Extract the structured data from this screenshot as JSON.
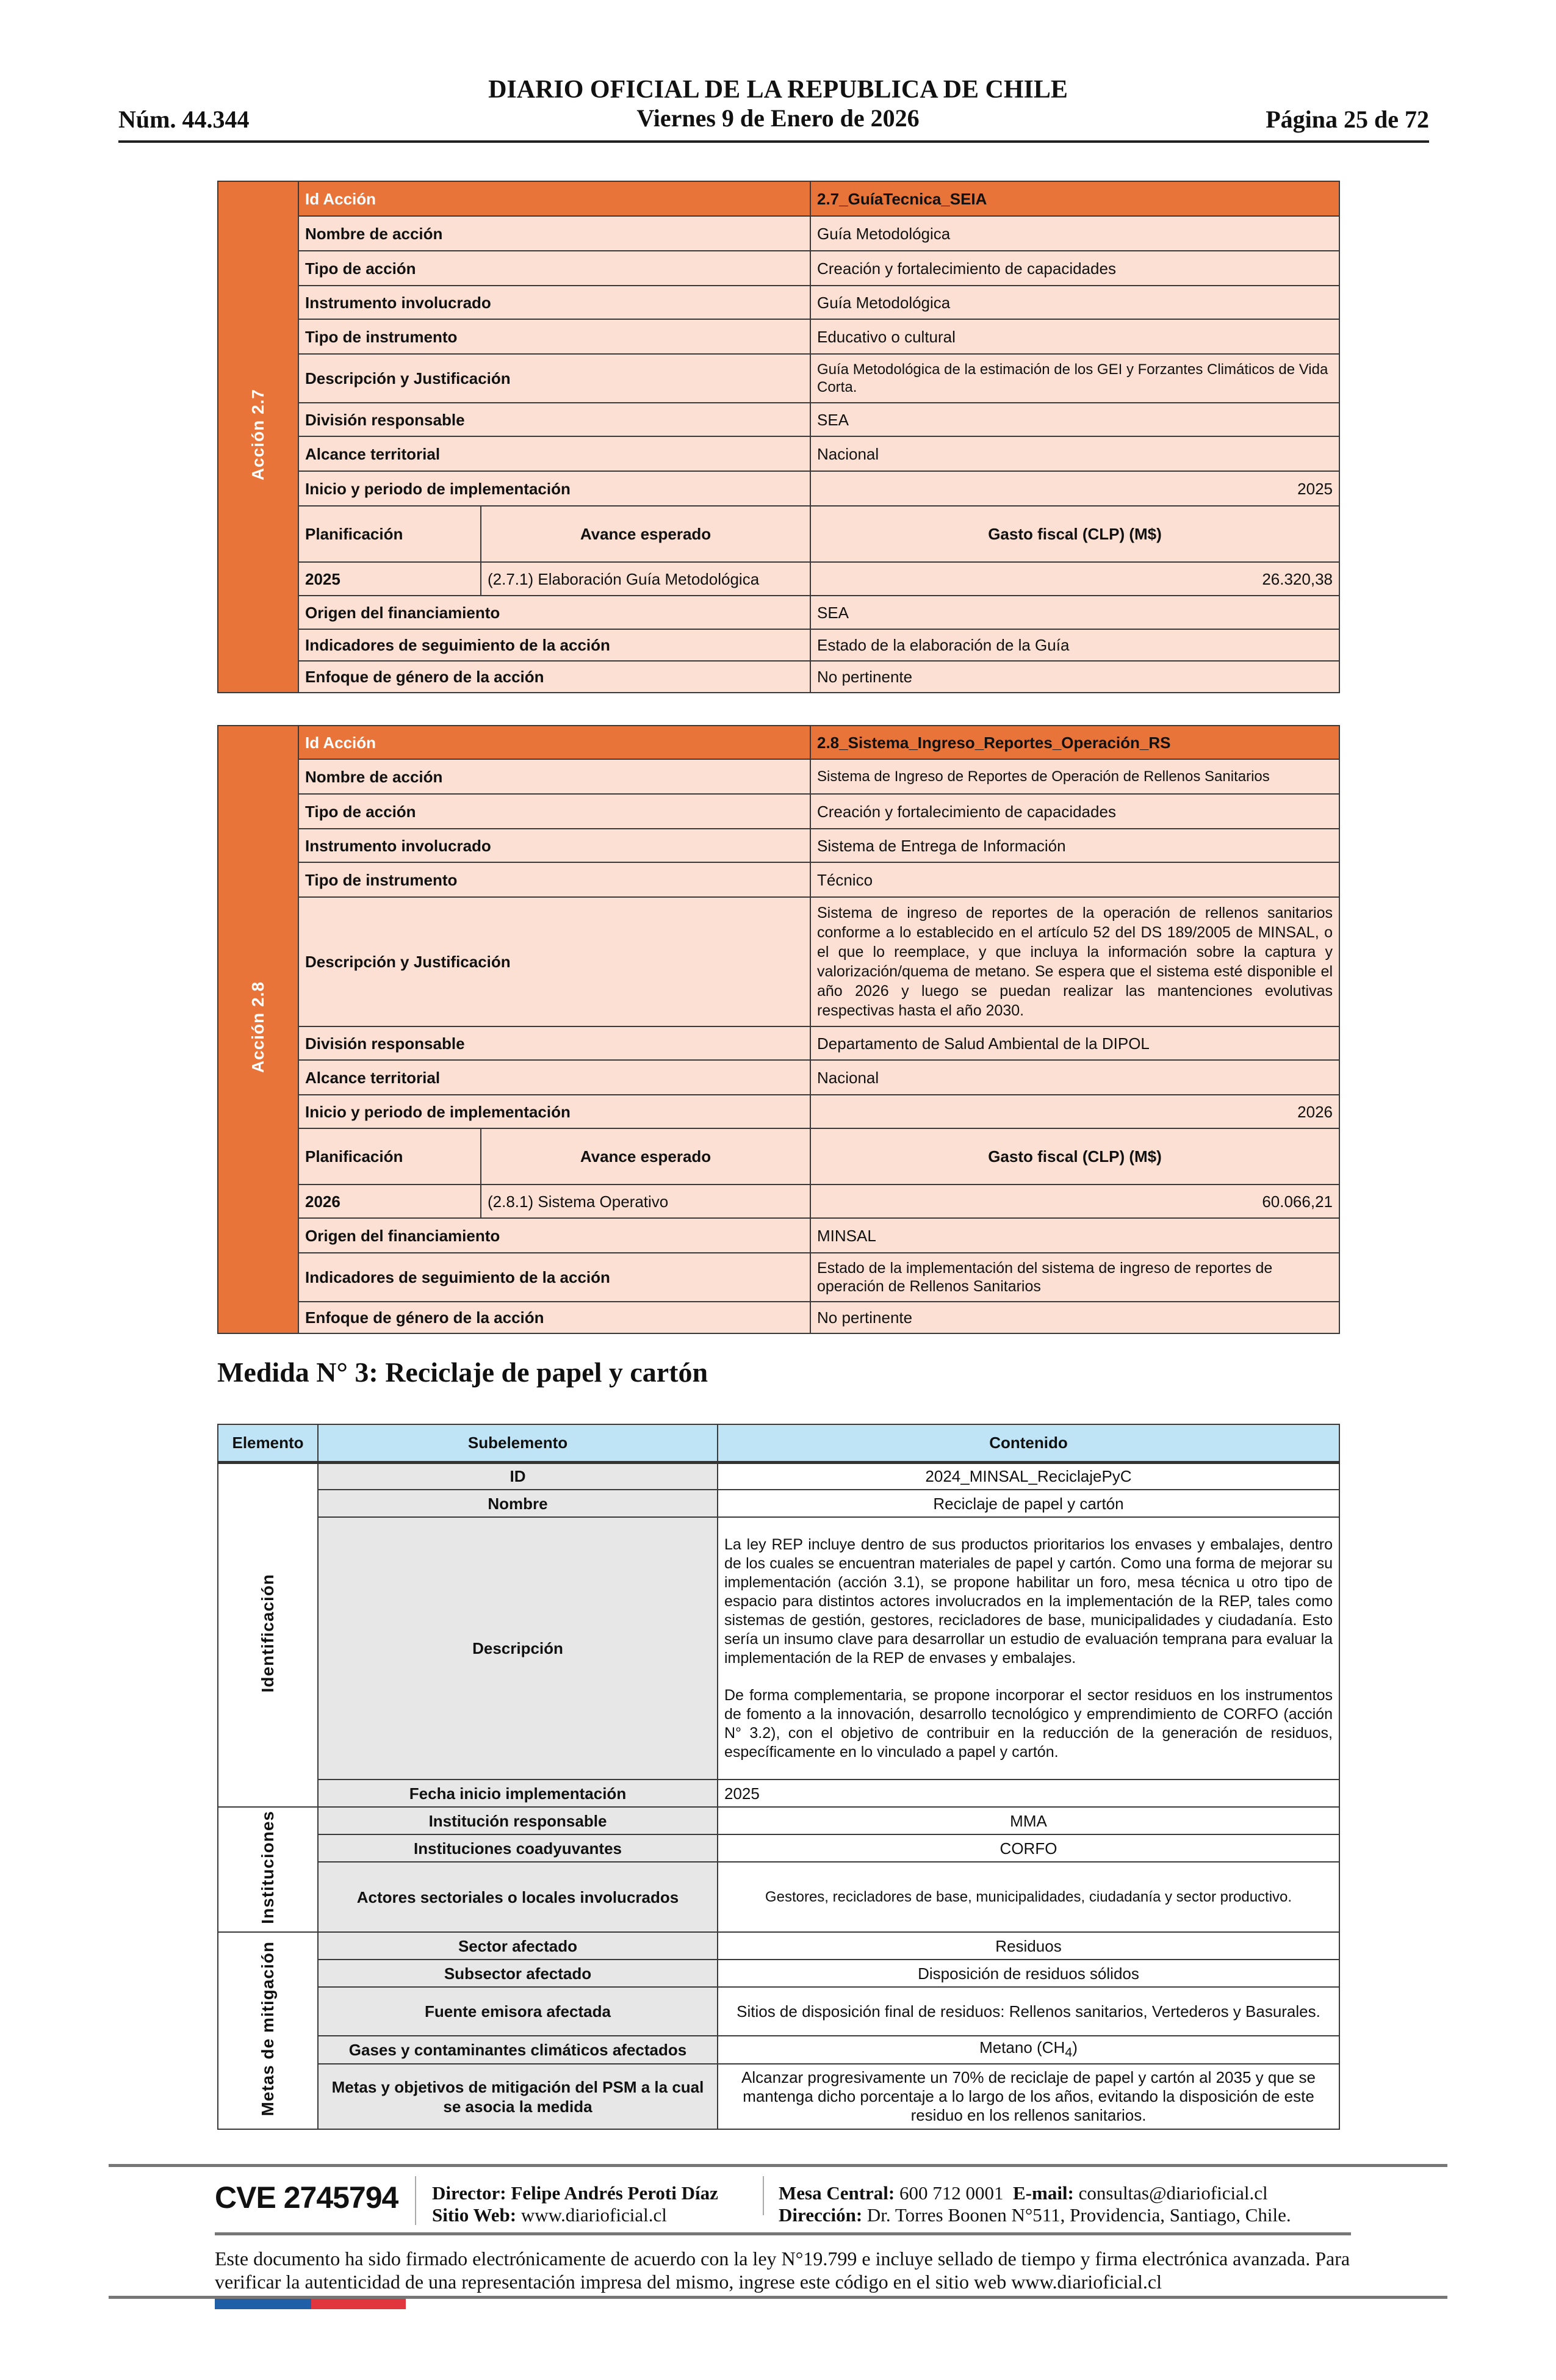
{
  "header": {
    "title": "DIARIO OFICIAL DE LA REPUBLICA DE CHILE",
    "date": "Viernes 9 de Enero de 2026",
    "number": "Núm. 44.344",
    "page": "Página 25 de 72"
  },
  "colors": {
    "orange_header": "#E8743A",
    "cell_peach": "#FBE0D3",
    "side_blue": "#DCE6F2",
    "table_header_blue": "#BEE4F5",
    "subelement_gray": "#E7E7E7",
    "flag_blue": "#1F5FA8",
    "flag_red": "#E2363E"
  },
  "accion27": {
    "side_label": "Acción 2.7",
    "id_label": "Id Acción",
    "id_value": "2.7_GuíaTecnica_SEIA",
    "rows": [
      {
        "label": "Nombre de acción",
        "value": "Guía Metodológica"
      },
      {
        "label": "Tipo de acción",
        "value": "Creación y fortalecimiento de capacidades"
      },
      {
        "label": "Instrumento involucrado",
        "value": "Guía Metodológica"
      },
      {
        "label": "Tipo de instrumento",
        "value": "Educativo o cultural"
      },
      {
        "label": "Descripción y Justificación",
        "value": "Guía Metodológica de la estimación de los GEI y Forzantes Climáticos de Vida Corta."
      },
      {
        "label": "División responsable",
        "value": "SEA"
      },
      {
        "label": "Alcance territorial",
        "value": "Nacional"
      },
      {
        "label": "Inicio y periodo de implementación",
        "value": "2025"
      }
    ],
    "plan": {
      "col1": "Planificación",
      "col2": "Avance esperado",
      "col3": "Gasto fiscal (CLP) (M$)",
      "year": "2025",
      "avance": "(2.7.1) Elaboración Guía Metodológica",
      "gasto": "26.320,38"
    },
    "rows2": [
      {
        "label": "Origen del financiamiento",
        "value": "SEA"
      },
      {
        "label": "Indicadores de seguimiento de la acción",
        "value": "Estado de la elaboración de la Guía"
      },
      {
        "label": "Enfoque de género de la acción",
        "value": "No pertinente"
      }
    ]
  },
  "accion28": {
    "side_label": "Acción 2.8",
    "id_label": "Id Acción",
    "id_value": "2.8_Sistema_Ingreso_Reportes_Operación_RS",
    "rows": [
      {
        "label": "Nombre de acción",
        "value": "Sistema de Ingreso de Reportes de Operación de Rellenos Sanitarios"
      },
      {
        "label": "Tipo de acción",
        "value": "Creación y fortalecimiento de capacidades"
      },
      {
        "label": "Instrumento involucrado",
        "value": "Sistema de Entrega de Información"
      },
      {
        "label": "Tipo de instrumento",
        "value": "Técnico"
      },
      {
        "label": "Descripción y Justificación",
        "value": "Sistema de ingreso de reportes de la operación de rellenos sanitarios conforme a lo establecido en el artículo 52 del DS 189/2005 de MINSAL, o el que lo reemplace, y que incluya la información sobre la captura y valorización/quema de metano. Se espera que el sistema esté disponible el año 2026 y luego se puedan realizar las mantenciones evolutivas respectivas hasta el año 2030."
      },
      {
        "label": "División responsable",
        "value": "Departamento de Salud Ambiental de la DIPOL"
      },
      {
        "label": "Alcance territorial",
        "value": "Nacional"
      },
      {
        "label": "Inicio y periodo de implementación",
        "value": "2026"
      }
    ],
    "plan": {
      "col1": "Planificación",
      "col2": "Avance esperado",
      "col3": "Gasto fiscal (CLP) (M$)",
      "year": "2026",
      "avance": "(2.8.1) Sistema Operativo",
      "gasto": "60.066,21"
    },
    "rows2": [
      {
        "label": "Origen del financiamiento",
        "value": "MINSAL"
      },
      {
        "label": "Indicadores de seguimiento de la acción",
        "value": "Estado de la implementación del sistema de ingreso de reportes de operación de Rellenos Sanitarios"
      },
      {
        "label": "Enfoque de género de la acción",
        "value": "No pertinente"
      }
    ]
  },
  "medida": {
    "heading": "Medida N° 3: Reciclaje de papel y cartón",
    "columns": [
      "Elemento",
      "Subelemento",
      "Contenido"
    ],
    "groups": [
      "Identificación",
      "Instituciones",
      "Metas de mitigación"
    ],
    "rows": [
      {
        "sub": "ID",
        "value": "2024_MINSAL_ReciclajePyC"
      },
      {
        "sub": "Nombre",
        "value": "Reciclaje de papel y cartón"
      },
      {
        "sub": "Descripción",
        "value": "La ley REP incluye dentro de sus productos prioritarios los envases y embalajes, dentro de los cuales se encuentran materiales de papel y cartón. Como una forma de mejorar su implementación (acción 3.1), se propone habilitar un foro, mesa técnica u otro tipo de espacio para distintos actores involucrados en la implementación de la REP, tales como sistemas de gestión, gestores, recicladores de base, municipalidades y ciudadanía. Esto sería un insumo clave para desarrollar un estudio de evaluación temprana para evaluar la implementación de la REP de envases y embalajes.",
        "value2": "De forma complementaria, se propone incorporar el sector residuos en los instrumentos de fomento a la innovación, desarrollo tecnológico y emprendimiento de CORFO (acción N° 3.2), con el objetivo de contribuir en la reducción de la generación de residuos, específicamente en lo vinculado a papel y cartón."
      },
      {
        "sub": "Fecha inicio implementación",
        "value": "2025"
      },
      {
        "sub": "Institución responsable",
        "value": "MMA"
      },
      {
        "sub": "Instituciones coadyuvantes",
        "value": "CORFO"
      },
      {
        "sub": "Actores sectoriales o locales involucrados",
        "value": "Gestores, recicladores de base, municipalidades, ciudadanía y sector productivo."
      },
      {
        "sub": "Sector afectado",
        "value": "Residuos"
      },
      {
        "sub": "Subsector afectado",
        "value": "Disposición de residuos sólidos"
      },
      {
        "sub": "Fuente emisora afectada",
        "value": "Sitios de disposición final de residuos: Rellenos sanitarios, Vertederos y Basurales."
      },
      {
        "sub": "Gases y contaminantes climáticos afectados",
        "value": "Metano (CH",
        "value_sub": "4",
        "value_end": ")"
      },
      {
        "sub": "Metas y objetivos de mitigación del PSM a la cual se asocia la medida",
        "value": "Alcanzar progresivamente un 70% de reciclaje de papel y cartón al 2035 y que se mantenga dicho porcentaje a lo largo de los años, evitando la disposición de este residuo en los rellenos sanitarios."
      }
    ]
  },
  "footer": {
    "cve": "CVE 2745794",
    "director_label": "Director:",
    "director": "Felipe Andrés Peroti Díaz",
    "web_label": "Sitio Web:",
    "web": "www.diarioficial.cl",
    "mesa_label": "Mesa Central:",
    "mesa": "600 712 0001",
    "email_label": "E-mail:",
    "email": "consultas@diarioficial.cl",
    "dir_label": "Dirección:",
    "dir": "Dr. Torres Boonen N°511, Providencia, Santiago, Chile.",
    "legal": "Este documento ha sido firmado electrónicamente de acuerdo con la ley N°19.799 e incluye sellado de tiempo y firma electrónica avanzada. Para verificar la autenticidad de una representación impresa del mismo, ingrese este código en el sitio web www.diarioficial.cl"
  }
}
